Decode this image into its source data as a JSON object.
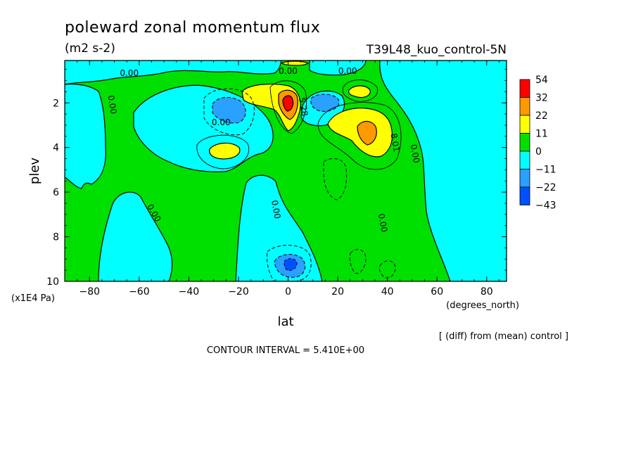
{
  "title": "poleward zonal momentum flux",
  "units": "(m2 s-2)",
  "run_label": "T39L48_kuo_control-5N",
  "diff_note": "[ (diff) from (mean) control ]",
  "contour_interval": "CONTOUR INTERVAL = 5.410E+00",
  "chart_data": {
    "type": "heatmap",
    "xlabel": "lat",
    "xunits": "(degrees_north)",
    "ylabel": "plev",
    "yunits": "(x1E4 Pa)",
    "xlim": [
      -90,
      88
    ],
    "ylim": [
      10,
      0.1
    ],
    "x_ticks": [
      -80,
      -60,
      -40,
      -20,
      0,
      20,
      40,
      60,
      80
    ],
    "x_tick_labels": [
      "−80",
      "−60",
      "−40",
      "−20",
      "0",
      "20",
      "40",
      "60",
      "80"
    ],
    "y_ticks": [
      2,
      4,
      6,
      8,
      10
    ],
    "y_tick_labels": [
      "2",
      "4",
      "6",
      "8",
      "10"
    ],
    "colorbar": {
      "labels": [
        "54",
        "32",
        "22",
        "11",
        "0",
        "−11",
        "−22",
        "−43"
      ],
      "colors": [
        "#ff0000",
        "#ff9900",
        "#ffff00",
        "#00e000",
        "#00ffff",
        "#2aa0ff",
        "#0050ff"
      ]
    },
    "contour_labels": [
      {
        "text": "0.00",
        "x": -64,
        "y": 0.8
      },
      {
        "text": "0.00",
        "x": -72,
        "y": 2.1
      },
      {
        "text": "0.00",
        "x": -27,
        "y": 3.0
      },
      {
        "text": "0.00",
        "x": 0,
        "y": 0.7
      },
      {
        "text": "0.00",
        "x": 24,
        "y": 0.7
      },
      {
        "text": "0.00",
        "x": -55,
        "y": 7.0
      },
      {
        "text": "0.00",
        "x": -6,
        "y": 6.8
      },
      {
        "text": "0.00",
        "x": 37,
        "y": 7.4
      },
      {
        "text": "0.00",
        "x": 50,
        "y": 4.3
      },
      {
        "text": "8.01",
        "x": 42,
        "y": 3.8
      },
      {
        "text": "5.28",
        "x": 5,
        "y": 2.2
      }
    ]
  }
}
